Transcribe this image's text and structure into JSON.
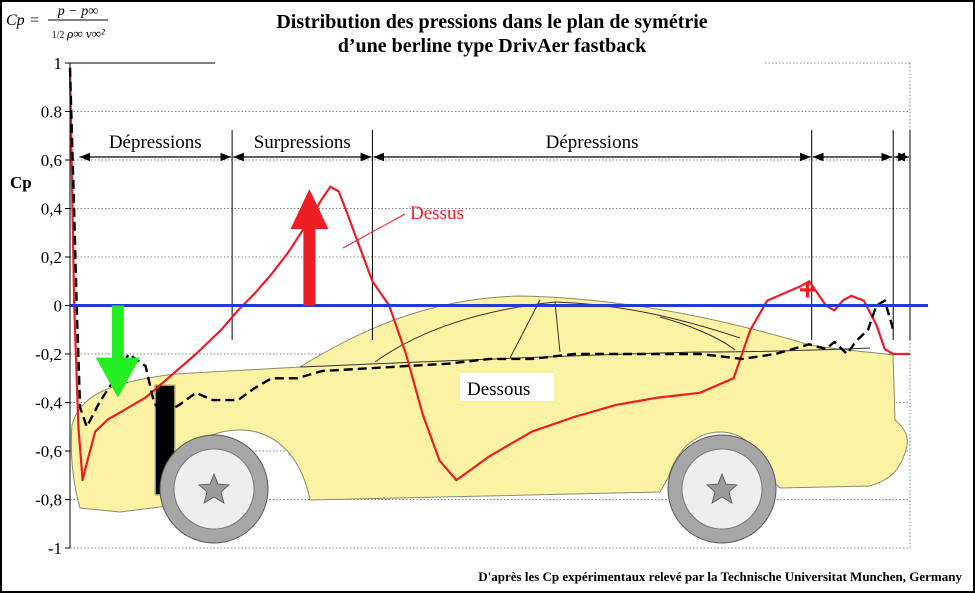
{
  "chart_data": {
    "type": "line",
    "title": "Distribution des pressions dans le plan de symétrie",
    "subtitle": "d’une berline type DrivAer fastback",
    "formula": {
      "lhs": "Cp",
      "num": "p − p∞",
      "den_coef": "1/2",
      "den": "ρ∞ v∞²"
    },
    "ylabel": "Cp",
    "ylim": [
      -1,
      1
    ],
    "xlim": [
      0,
      1
    ],
    "yticks": [
      {
        "v": 1,
        "label": "1"
      },
      {
        "v": 0.8,
        "label": "0.8"
      },
      {
        "v": 0.6,
        "label": "0,6"
      },
      {
        "v": 0.4,
        "label": "0,4"
      },
      {
        "v": 0.2,
        "label": "0,2"
      },
      {
        "v": 0,
        "label": "0"
      },
      {
        "v": -0.2,
        "label": "-0,2"
      },
      {
        "v": -0.4,
        "label": "-0,4"
      },
      {
        "v": -0.6,
        "label": "-0,6"
      },
      {
        "v": -0.8,
        "label": "-0,8"
      },
      {
        "v": -1,
        "label": "-1"
      }
    ],
    "grid": true,
    "zones": [
      {
        "label": "Dépressions",
        "from": 0.01,
        "to": 0.193
      },
      {
        "label": "Surpressions",
        "from": 0.193,
        "to": 0.36
      },
      {
        "label": "Dépressions",
        "from": 0.36,
        "to": 0.883
      },
      {
        "label": "",
        "from": 0.883,
        "to": 0.98
      },
      {
        "label": "",
        "from": 0.98,
        "to": 1.0
      }
    ],
    "series": [
      {
        "name": "Dessus",
        "color": "#ee1c25",
        "style": "solid",
        "x": [
          0.0,
          0.005,
          0.01,
          0.015,
          0.02,
          0.03,
          0.045,
          0.065,
          0.09,
          0.12,
          0.15,
          0.18,
          0.2,
          0.22,
          0.24,
          0.26,
          0.275,
          0.29,
          0.3,
          0.31,
          0.32,
          0.33,
          0.345,
          0.36,
          0.38,
          0.4,
          0.42,
          0.44,
          0.46,
          0.5,
          0.55,
          0.6,
          0.65,
          0.7,
          0.75,
          0.77,
          0.79,
          0.8,
          0.81,
          0.83,
          0.85,
          0.87,
          0.88,
          0.89,
          0.9,
          0.91,
          0.92,
          0.93,
          0.945,
          0.96,
          0.97,
          0.98,
          0.99,
          1.0
        ],
        "y": [
          0.98,
          0.0,
          -0.5,
          -0.72,
          -0.65,
          -0.52,
          -0.47,
          -0.43,
          -0.38,
          -0.29,
          -0.2,
          -0.1,
          -0.02,
          0.05,
          0.13,
          0.22,
          0.3,
          0.38,
          0.44,
          0.49,
          0.47,
          0.38,
          0.24,
          0.1,
          0.0,
          -0.2,
          -0.45,
          -0.64,
          -0.72,
          -0.62,
          -0.52,
          -0.46,
          -0.41,
          -0.38,
          -0.36,
          -0.33,
          -0.3,
          -0.2,
          -0.1,
          0.02,
          0.05,
          0.08,
          0.1,
          0.05,
          0.0,
          -0.02,
          0.02,
          0.04,
          0.02,
          -0.08,
          -0.18,
          -0.2,
          -0.2,
          -0.2
        ]
      },
      {
        "name": "Dessous",
        "color": "#000000",
        "style": "dashed",
        "x": [
          0.0,
          0.004,
          0.008,
          0.012,
          0.02,
          0.035,
          0.05,
          0.07,
          0.09,
          0.1,
          0.11,
          0.13,
          0.15,
          0.17,
          0.2,
          0.22,
          0.24,
          0.27,
          0.3,
          0.35,
          0.4,
          0.45,
          0.5,
          0.55,
          0.6,
          0.65,
          0.7,
          0.75,
          0.8,
          0.84,
          0.86,
          0.88,
          0.9,
          0.91,
          0.925,
          0.935,
          0.95,
          0.96,
          0.97,
          0.98
        ],
        "y": [
          0.98,
          0.5,
          0.0,
          -0.42,
          -0.5,
          -0.4,
          -0.32,
          -0.2,
          -0.25,
          -0.4,
          -0.45,
          -0.41,
          -0.36,
          -0.39,
          -0.39,
          -0.34,
          -0.3,
          -0.3,
          -0.27,
          -0.26,
          -0.25,
          -0.24,
          -0.22,
          -0.22,
          -0.2,
          -0.2,
          -0.2,
          -0.2,
          -0.22,
          -0.2,
          -0.18,
          -0.16,
          -0.18,
          -0.15,
          -0.2,
          -0.15,
          -0.1,
          0.0,
          0.02,
          -0.1
        ]
      },
      {
        "name": "",
        "color": "#1f3bd7",
        "style": "solid",
        "x": [
          0.0,
          1.0
        ],
        "y": [
          0.0,
          0.0
        ]
      }
    ],
    "arrows": [
      {
        "meaning": "Surpressions",
        "color": "#ee1c25",
        "direction": "up",
        "x": 0.285,
        "y_from": 0.0,
        "y_to": 0.48
      },
      {
        "meaning": "Dépressions",
        "color": "#22ee22",
        "direction": "down",
        "x": 0.057,
        "y_from": 0.0,
        "y_to": -0.38
      }
    ],
    "plus_mark": {
      "text": "+",
      "color": "#ee1c25",
      "x": 0.878,
      "y": 0.04
    },
    "series_labels": [
      {
        "text": "Dessus",
        "color": "#ee1c25"
      },
      {
        "text": "Dessous",
        "color": "#000000"
      }
    ]
  },
  "credit": "D'après les Cp expérimentaux relevé par la  Technische Universitat Munchen, Germany",
  "colors": {
    "car_body": "#fbf3a3",
    "car_outline": "#8a8a6a",
    "wheel_tire": "#a6a6a6",
    "wheel_rim": "#eeeeee",
    "hub_star": "#9a9a9a",
    "front_blocker": "#000000"
  },
  "icons": [
    "star-hub-icon",
    "up-arrow-icon",
    "down-arrow-icon",
    "plus-icon"
  ]
}
